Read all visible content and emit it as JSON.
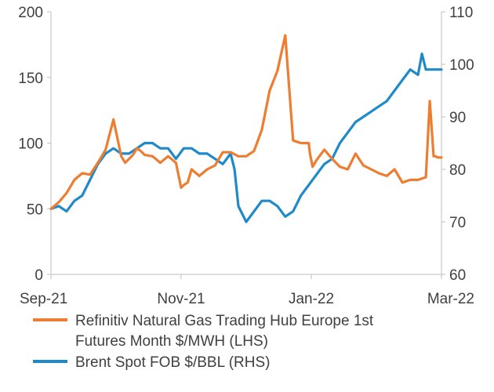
{
  "chart_data": {
    "type": "line",
    "title": "",
    "xlabel": "",
    "ylabel_left": "",
    "ylabel_right": "",
    "x_tick_labels": [
      "Sep-21",
      "Nov-21",
      "Jan-22",
      "Mar-22"
    ],
    "x_tick_months": [
      0,
      2,
      4,
      6
    ],
    "xlim": [
      0,
      6
    ],
    "ylim_left": [
      0,
      200
    ],
    "y_ticks_left": [
      0,
      50,
      100,
      150,
      200
    ],
    "ylim_right": [
      60,
      110
    ],
    "y_ticks_right": [
      60,
      70,
      80,
      90,
      100,
      110
    ],
    "grid": false,
    "legend_position": "bottom",
    "series": [
      {
        "name": "Refinitiv Natural Gas Trading Hub Europe 1st Futures Month $/MWH (LHS)",
        "axis": "left",
        "color": "#ed7d31",
        "x": [
          0.0,
          0.12,
          0.24,
          0.36,
          0.48,
          0.6,
          0.72,
          0.84,
          0.96,
          1.08,
          1.14,
          1.2,
          1.26,
          1.32,
          1.38,
          1.44,
          1.56,
          1.68,
          1.8,
          1.92,
          2.0,
          2.04,
          2.1,
          2.16,
          2.28,
          2.4,
          2.52,
          2.64,
          2.76,
          2.88,
          3.0,
          3.12,
          3.24,
          3.36,
          3.48,
          3.6,
          3.72,
          3.84,
          3.96,
          3.98,
          4.02,
          4.08,
          4.2,
          4.32,
          4.44,
          4.56,
          4.68,
          4.8,
          4.92,
          5.04,
          5.16,
          5.28,
          5.4,
          5.52,
          5.64,
          5.76,
          5.82,
          5.88,
          5.91,
          5.94,
          6.0
        ],
        "values": [
          50,
          55,
          62,
          72,
          77,
          76,
          85,
          95,
          118,
          90,
          85,
          88,
          91,
          96,
          94,
          91,
          90,
          85,
          90,
          85,
          66,
          68,
          70,
          80,
          75,
          80,
          83,
          93,
          93,
          90,
          90,
          94,
          110,
          140,
          155,
          182,
          102,
          100,
          100,
          92,
          82,
          87,
          95,
          88,
          82,
          80,
          92,
          83,
          80,
          77,
          75,
          80,
          70,
          72,
          72,
          74,
          132,
          90,
          90,
          89,
          89
        ]
      },
      {
        "name": "Brent Spot FOB $/BBL (RHS)",
        "axis": "right",
        "color": "#1f8ac9",
        "x": [
          0.0,
          0.12,
          0.24,
          0.36,
          0.48,
          0.6,
          0.72,
          0.84,
          0.96,
          1.08,
          1.2,
          1.32,
          1.44,
          1.56,
          1.68,
          1.8,
          1.92,
          2.04,
          2.16,
          2.28,
          2.4,
          2.52,
          2.64,
          2.76,
          2.82,
          2.88,
          3.0,
          3.12,
          3.24,
          3.36,
          3.48,
          3.6,
          3.72,
          3.84,
          3.96,
          4.08,
          4.2,
          4.32,
          4.44,
          4.56,
          4.68,
          4.8,
          4.92,
          5.04,
          5.16,
          5.28,
          5.4,
          5.52,
          5.64,
          5.7,
          5.76,
          5.88,
          6.0
        ],
        "values": [
          72.5,
          73,
          72,
          74,
          75,
          78,
          81,
          83,
          84,
          83,
          83,
          84,
          85,
          85,
          84,
          84,
          82,
          84,
          84,
          83,
          83,
          82,
          81,
          83,
          80,
          73,
          70,
          72,
          74,
          74,
          73,
          71,
          72,
          75,
          77,
          79,
          81,
          82,
          85,
          87,
          89,
          90,
          91,
          92,
          93,
          95,
          97,
          99,
          98,
          102,
          99,
          99,
          99
        ]
      }
    ]
  }
}
